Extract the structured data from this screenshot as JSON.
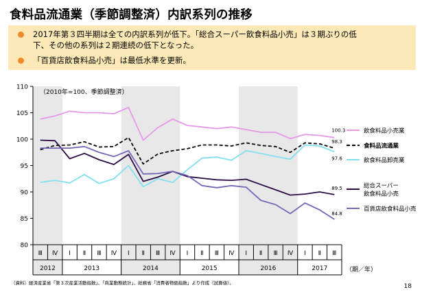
{
  "page": {
    "title": "食料品流通業（季節調整済）内訳系列の推移",
    "bullets": [
      "2017年第３四半期は全ての内訳系列が低下。「総合スーパー飲食料品小売」は３期ぶりの低\n下、その他の系列は２期連続の低下となった。",
      "「百貨店飲食料品小売」は最低水準を更新。"
    ],
    "source": "（資料）経済産業省「第３次産業活動指数」、「商業動態統計」、総務省「消費者物価指数」より作成（試算値）。",
    "page_number": "18"
  },
  "colors": {
    "summary_bg": "#fde9b7",
    "bullet": "#f08a26",
    "shade": "#e8e8e8"
  },
  "chart_data": {
    "type": "line",
    "note": "（2010年=100、季節調整済）",
    "x_unit_label": "（期／年）",
    "quarter_labels": [
      "Ⅲ",
      "Ⅳ",
      "Ⅰ",
      "Ⅱ",
      "Ⅲ",
      "Ⅳ",
      "Ⅰ",
      "Ⅱ",
      "Ⅲ",
      "Ⅳ",
      "Ⅰ",
      "Ⅱ",
      "Ⅲ",
      "Ⅳ",
      "Ⅰ",
      "Ⅱ",
      "Ⅲ",
      "Ⅳ",
      "Ⅰ",
      "Ⅱ",
      "Ⅲ"
    ],
    "years": [
      {
        "label": "2012",
        "start": 0,
        "end": 1
      },
      {
        "label": "2013",
        "start": 2,
        "end": 5
      },
      {
        "label": "2014",
        "start": 6,
        "end": 9
      },
      {
        "label": "2015",
        "start": 10,
        "end": 13
      },
      {
        "label": "2016",
        "start": 14,
        "end": 17
      },
      {
        "label": "2017",
        "start": 18,
        "end": 20
      }
    ],
    "shaded_years": [
      "2012",
      "2014",
      "2016"
    ],
    "ylim": [
      80,
      110
    ],
    "yticks": [
      80,
      85,
      90,
      95,
      100,
      105,
      110
    ],
    "grid": false,
    "legend_position": "right",
    "series": [
      {
        "name": "飲食料品小売業",
        "color": "#e896e8",
        "width": 1.8,
        "dash": "",
        "end_label": "100.3",
        "legend_weight": "normal",
        "values": [
          103.8,
          104.4,
          105.3,
          105.0,
          105.0,
          104.8,
          106.0,
          99.8,
          102.2,
          103.8,
          102.6,
          102.3,
          102.0,
          102.3,
          101.8,
          101.3,
          101.3,
          100.1,
          100.9,
          100.7,
          100.3
        ]
      },
      {
        "name": "食料品流通業",
        "color": "#000000",
        "width": 1.8,
        "dash": "5,3",
        "end_label": "98.3",
        "legend_weight": "bold",
        "values": [
          98.0,
          98.8,
          98.9,
          99.5,
          98.5,
          98.6,
          100.3,
          95.3,
          97.2,
          97.8,
          98.2,
          98.9,
          98.9,
          98.7,
          99.3,
          98.8,
          98.6,
          97.5,
          99.3,
          99.1,
          98.3
        ]
      },
      {
        "name": "飲食料品卸売業",
        "color": "#80e0f0",
        "width": 1.8,
        "dash": "",
        "end_label": "97.6",
        "legend_weight": "normal",
        "values": [
          91.8,
          92.2,
          91.7,
          93.3,
          91.6,
          92.5,
          95.0,
          91.0,
          92.5,
          91.8,
          94.2,
          96.4,
          96.6,
          96.0,
          97.8,
          97.3,
          96.7,
          96.2,
          98.9,
          98.7,
          97.6
        ]
      },
      {
        "name": "総合スーパー\n飲食料品小売",
        "color": "#2a0a44",
        "width": 1.8,
        "dash": "",
        "end_label": "89.5",
        "legend_weight": "normal",
        "values": [
          99.8,
          99.7,
          96.3,
          97.3,
          96.1,
          95.2,
          97.1,
          92.0,
          92.8,
          93.9,
          92.9,
          92.6,
          92.3,
          92.2,
          92.4,
          91.4,
          90.4,
          89.4,
          89.6,
          90.0,
          89.5
        ]
      },
      {
        "name": "百貨店飲食料品小売",
        "color": "#7565b8",
        "width": 1.8,
        "dash": "",
        "end_label": "84.8",
        "legend_weight": "normal",
        "values": [
          98.3,
          98.3,
          98.3,
          98.6,
          97.5,
          96.7,
          97.8,
          93.4,
          93.5,
          93.9,
          93.1,
          91.2,
          90.8,
          91.2,
          90.9,
          88.4,
          87.6,
          85.9,
          87.9,
          86.6,
          84.8
        ]
      }
    ]
  }
}
